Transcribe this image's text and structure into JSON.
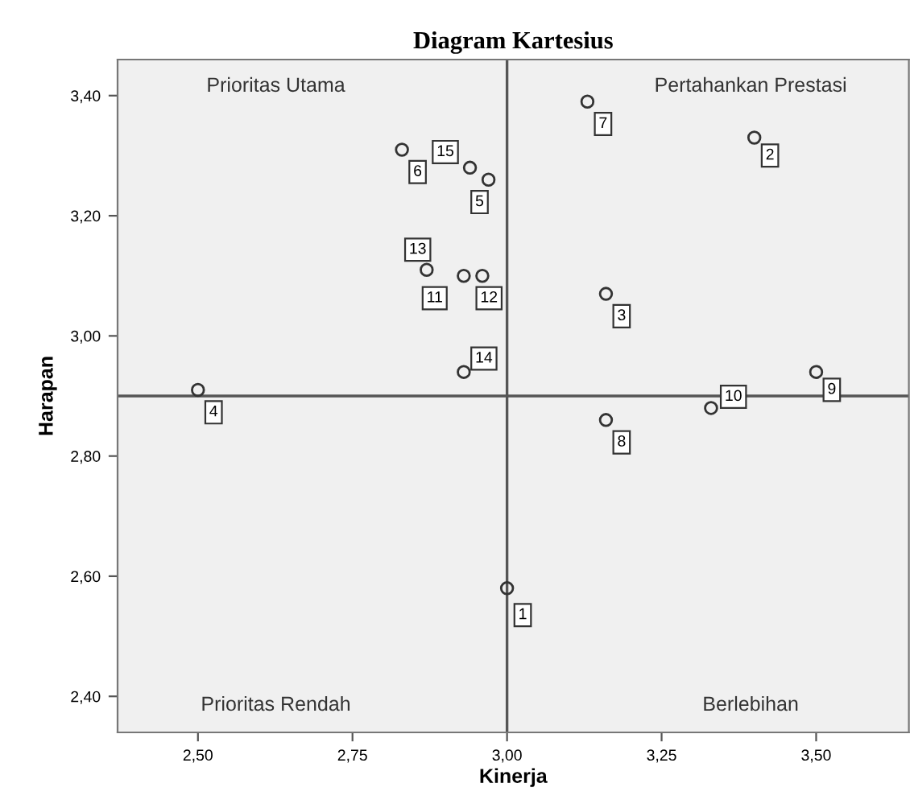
{
  "chart_data": {
    "type": "scatter",
    "title": "Diagram Kartesius",
    "xlabel": "Kinerja",
    "ylabel": "Harapan",
    "x": [
      3.0,
      3.4,
      3.16,
      2.5,
      2.97,
      2.83,
      3.13,
      3.16,
      3.5,
      3.33,
      2.93,
      2.96,
      2.87,
      2.93,
      2.94
    ],
    "values": [
      2.58,
      3.33,
      3.07,
      2.91,
      3.26,
      3.31,
      3.39,
      2.86,
      2.94,
      2.88,
      3.1,
      3.1,
      3.11,
      2.94,
      3.28
    ],
    "color": "#333333",
    "marker": "circle",
    "grid": false,
    "legend": false,
    "xlim": [
      2.37,
      3.65
    ],
    "ylim": [
      2.34,
      3.46
    ],
    "xticks": [
      {
        "value": 2.5,
        "label": "2,50"
      },
      {
        "value": 2.75,
        "label": "2,75"
      },
      {
        "value": 3.0,
        "label": "3,00"
      },
      {
        "value": 3.25,
        "label": "3,25"
      },
      {
        "value": 3.5,
        "label": "3,50"
      }
    ],
    "yticks": [
      {
        "value": 2.4,
        "label": "2,40"
      },
      {
        "value": 2.6,
        "label": "2,60"
      },
      {
        "value": 2.8,
        "label": "2,80"
      },
      {
        "value": 3.0,
        "label": "3,00"
      },
      {
        "value": 3.2,
        "label": "3,20"
      },
      {
        "value": 3.4,
        "label": "3,40"
      }
    ],
    "ref_lines": [
      {
        "axis": "x",
        "value": 3.0,
        "color": "#555555"
      },
      {
        "axis": "y",
        "value": 2.9,
        "color": "#555555"
      }
    ],
    "annotations": [
      "Prioritas Utama",
      "Pertahankan Prestasi",
      "Prioritas Rendah",
      "Berlebihan",
      {
        "text": "1",
        "x": 3.0,
        "y": 2.58
      },
      {
        "text": "2",
        "x": 3.4,
        "y": 3.33
      },
      {
        "text": "3",
        "x": 3.16,
        "y": 3.07
      },
      {
        "text": "4",
        "x": 2.5,
        "y": 2.91
      },
      {
        "text": "5",
        "x": 2.97,
        "y": 3.26
      },
      {
        "text": "6",
        "x": 2.83,
        "y": 3.31
      },
      {
        "text": "7",
        "x": 3.13,
        "y": 3.39
      },
      {
        "text": "8",
        "x": 3.16,
        "y": 2.86
      },
      {
        "text": "9",
        "x": 3.5,
        "y": 2.94
      },
      {
        "text": "10",
        "x": 3.33,
        "y": 2.88
      },
      {
        "text": "11",
        "x": 2.93,
        "y": 3.1
      },
      {
        "text": "12",
        "x": 2.96,
        "y": 3.1
      },
      {
        "text": "13",
        "x": 2.87,
        "y": 3.11
      },
      {
        "text": "14",
        "x": 2.93,
        "y": 2.94
      },
      {
        "text": "15",
        "x": 2.94,
        "y": 3.28
      }
    ]
  }
}
